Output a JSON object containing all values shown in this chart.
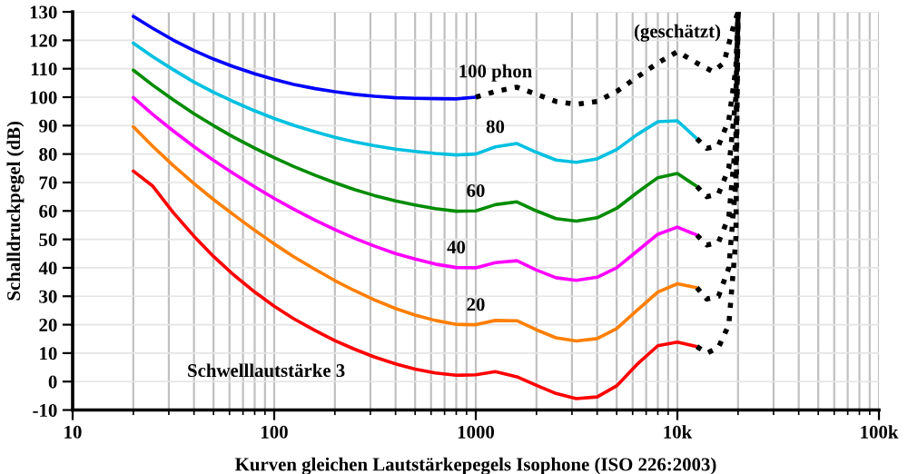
{
  "chart_data": {
    "type": "line",
    "xlabel": "Kurven gleichen Lautstärkepegels Isophone (ISO 226:2003)",
    "ylabel": "Schalldruckpegel (dB)",
    "x": [
      20,
      25,
      31.5,
      40,
      50,
      63,
      80,
      100,
      125,
      160,
      200,
      250,
      315,
      400,
      500,
      630,
      800,
      1000,
      1250,
      1600,
      2000,
      2500,
      3150,
      4000,
      5000,
      6300,
      8000,
      10000,
      12500
    ],
    "series": [
      {
        "color": "#ff0000",
        "values": [
          74,
          68.7,
          59.5,
          51.1,
          44.0,
          37.5,
          31.5,
          26.5,
          22.1,
          17.9,
          14.4,
          11.4,
          8.6,
          6.2,
          4.4,
          3.0,
          2.2,
          2.4,
          3.5,
          1.7,
          -1.3,
          -4.2,
          -6.0,
          -5.4,
          -1.5,
          6.0,
          12.6,
          13.9,
          12.3
        ]
      },
      {
        "color": "#ff7f00",
        "values": [
          89.6,
          82.7,
          76,
          69.6,
          64,
          58.6,
          53.2,
          48.4,
          43.9,
          39.4,
          35.5,
          32,
          28.7,
          25.7,
          23.4,
          21.5,
          20.1,
          20,
          21.5,
          21.4,
          18.2,
          15.4,
          14.3,
          15.1,
          18.6,
          25,
          31.5,
          34.4,
          33
        ]
      },
      {
        "color": "#ff00ff",
        "values": [
          99.9,
          93.9,
          88.2,
          82.6,
          77.8,
          73.1,
          68.5,
          64.4,
          60.6,
          56.7,
          53.4,
          50.4,
          47.6,
          45,
          43.1,
          41.3,
          40.1,
          40,
          41.8,
          42.5,
          39.2,
          36.5,
          35.6,
          36.7,
          40,
          45.8,
          51.8,
          54.3,
          51.5
        ]
      },
      {
        "color": "#008c00",
        "values": [
          109.5,
          104.2,
          99.1,
          94.2,
          90,
          85.9,
          82.1,
          78.7,
          75.6,
          72.5,
          69.9,
          67.5,
          65.4,
          63.5,
          62.1,
          60.8,
          59.9,
          60,
          62.2,
          63.2,
          60,
          57.3,
          56.4,
          57.6,
          60.9,
          66.4,
          71.7,
          73.2,
          68.6
        ]
      },
      {
        "color": "#00c0e0",
        "values": [
          119,
          114.2,
          109.7,
          105.3,
          101.7,
          98.4,
          95.2,
          92.5,
          90.1,
          87.8,
          85.9,
          84.3,
          82.9,
          81.7,
          80.9,
          80.2,
          79.7,
          80,
          82.5,
          83.7,
          80.6,
          77.9,
          77.1,
          78.3,
          81.6,
          86.8,
          91.4,
          91.7,
          85.4
        ]
      },
      {
        "color": "#0000ff",
        "values": [
          128.4,
          124.2,
          120.1,
          116.4,
          113.4,
          110.7,
          108.2,
          106.2,
          104.5,
          103,
          101.9,
          101,
          100.3,
          99.8,
          99.6,
          99.5,
          99.4,
          100,
          null,
          null,
          null,
          null,
          null,
          null,
          null,
          null,
          null,
          null,
          null
        ]
      },
      {
        "color": "#000000",
        "line_style": "dotted",
        "x": [
          1000,
          1250,
          1600,
          2000,
          2500,
          3150,
          4000,
          5000,
          6300,
          8000,
          10000,
          12500,
          15000,
          17000,
          19000,
          20000
        ],
        "values": [
          100,
          102,
          103.5,
          101,
          98.5,
          97.5,
          98.5,
          102,
          107,
          112,
          116,
          112,
          109,
          112,
          125,
          130
        ]
      },
      {
        "color": "#000000",
        "line_style": "dotted",
        "x": [
          12500,
          14000,
          16000,
          18000,
          19500,
          20000
        ],
        "values": [
          85.4,
          82,
          83,
          92,
          110,
          130
        ]
      },
      {
        "color": "#000000",
        "line_style": "dotted",
        "x": [
          12500,
          14000,
          16000,
          18000,
          19500,
          20000
        ],
        "values": [
          68.6,
          65,
          66,
          75,
          100,
          130
        ]
      },
      {
        "color": "#000000",
        "line_style": "dotted",
        "x": [
          12500,
          14000,
          16000,
          18000,
          19500,
          20000
        ],
        "values": [
          51.5,
          48,
          49,
          58,
          85,
          130
        ]
      },
      {
        "color": "#000000",
        "line_style": "dotted",
        "x": [
          12500,
          14000,
          16000,
          18000,
          19500,
          20000
        ],
        "values": [
          33,
          29,
          30,
          40,
          70,
          130
        ]
      },
      {
        "color": "#000000",
        "line_style": "dotted",
        "x": [
          12500,
          14000,
          16000,
          18000,
          19500,
          20000
        ],
        "values": [
          12.3,
          10,
          12,
          20,
          50,
          130
        ]
      }
    ],
    "annotations": [
      "Schwelllautstärke 3",
      {
        "text": "20",
        "x": 1000,
        "y": 20
      },
      {
        "text": "40",
        "x": 800,
        "y": 40.1
      },
      {
        "text": "60",
        "x": 1000,
        "y": 60
      },
      {
        "text": "80",
        "x": 1250,
        "y": 82.5
      },
      {
        "text": "100 phon",
        "x": 1250,
        "y": 102
      },
      {
        "text": "(geschätzt)",
        "x": 10000,
        "y": 116
      }
    ],
    "log": "x",
    "xlim": [
      10,
      100000
    ],
    "xticks": [
      10,
      100,
      1000,
      {
        "value": 10000,
        "label": "10k"
      },
      {
        "value": 100000,
        "label": "100k"
      }
    ],
    "ylim": [
      -10,
      130
    ],
    "yticks": [
      -10,
      0,
      10,
      20,
      30,
      40,
      50,
      60,
      70,
      80,
      90,
      100,
      110,
      120,
      130
    ],
    "grid": true,
    "legend": false,
    "line_style": "solid"
  }
}
